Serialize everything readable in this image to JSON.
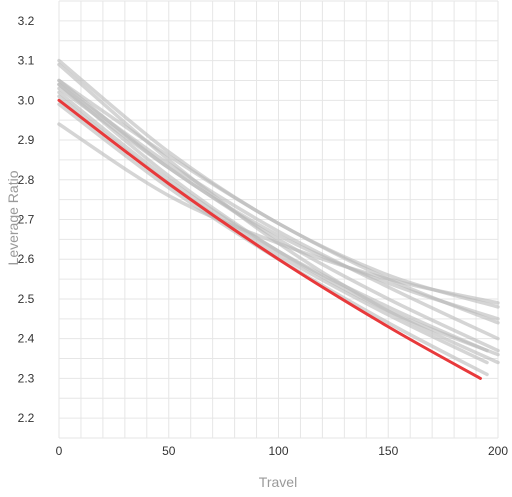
{
  "chart_data": {
    "type": "line",
    "title": "",
    "xlabel": "Travel",
    "ylabel": "Leverage Ratio",
    "xlim": [
      0,
      200
    ],
    "ylim": [
      2.15,
      3.25
    ],
    "x_ticks": [
      0,
      50,
      100,
      150,
      200
    ],
    "x_tick_labels": [
      "0",
      "50",
      "100",
      "150",
      "200"
    ],
    "y_ticks": [
      2.2,
      2.3,
      2.4,
      2.5,
      2.6,
      2.7,
      2.8,
      2.9,
      3.0,
      3.1,
      3.2
    ],
    "y_tick_labels": [
      "2.2",
      "2.3",
      "2.4",
      "2.5",
      "2.6",
      "2.7",
      "2.8",
      "2.9",
      "3.0",
      "3.1",
      "3.2"
    ],
    "grid": true,
    "legend": "none",
    "colors": {
      "highlight": "#e8393b",
      "comparison": "#b9b9b9",
      "grid": "#e6e6e6",
      "axis_title": "#9a9a9a",
      "tick_label": "#333333"
    },
    "series": [
      {
        "highlight": false,
        "x": [
          0,
          50,
          100,
          150,
          200
        ],
        "y": [
          3.1,
          2.87,
          2.69,
          2.56,
          2.48
        ]
      },
      {
        "highlight": false,
        "x": [
          0,
          50,
          100,
          150,
          200
        ],
        "y": [
          3.09,
          2.85,
          2.64,
          2.47,
          2.34
        ]
      },
      {
        "highlight": false,
        "x": [
          0,
          50,
          100,
          150,
          200
        ],
        "y": [
          3.05,
          2.86,
          2.69,
          2.55,
          2.44
        ]
      },
      {
        "highlight": false,
        "x": [
          0,
          50,
          100,
          150,
          200
        ],
        "y": [
          3.05,
          2.83,
          2.66,
          2.54,
          2.45
        ]
      },
      {
        "highlight": false,
        "x": [
          0,
          50,
          100,
          150,
          200
        ],
        "y": [
          3.04,
          2.84,
          2.67,
          2.53,
          2.4
        ]
      },
      {
        "highlight": false,
        "x": [
          0,
          50,
          100,
          150,
          200
        ],
        "y": [
          3.04,
          2.81,
          2.62,
          2.47,
          2.36
        ]
      },
      {
        "highlight": false,
        "x": [
          0,
          50,
          100,
          150,
          200
        ],
        "y": [
          3.03,
          2.83,
          2.65,
          2.5,
          2.37
        ]
      },
      {
        "highlight": false,
        "x": [
          0,
          50,
          100,
          150,
          195
        ],
        "y": [
          3.02,
          2.8,
          2.62,
          2.48,
          2.37
        ]
      },
      {
        "highlight": false,
        "x": [
          0,
          50,
          100,
          150,
          195
        ],
        "y": [
          3.01,
          2.79,
          2.61,
          2.46,
          2.34
        ]
      },
      {
        "highlight": false,
        "x": [
          0,
          50,
          100,
          150,
          195
        ],
        "y": [
          2.99,
          2.78,
          2.6,
          2.44,
          2.31
        ]
      },
      {
        "highlight": false,
        "x": [
          0,
          50,
          100,
          150,
          200
        ],
        "y": [
          2.94,
          2.76,
          2.64,
          2.55,
          2.49
        ]
      },
      {
        "highlight": true,
        "x": [
          0,
          50,
          100,
          150,
          192
        ],
        "y": [
          3.0,
          2.79,
          2.6,
          2.43,
          2.3
        ]
      }
    ]
  }
}
